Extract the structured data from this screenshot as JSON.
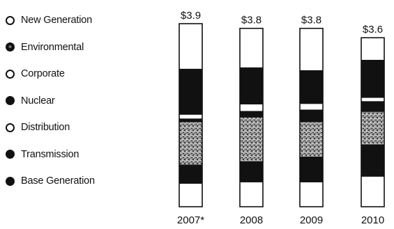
{
  "legend": {
    "items": [
      {
        "label": "New Generation",
        "marker": "hollow"
      },
      {
        "label": "Environmental",
        "marker": "filled"
      },
      {
        "label": "Corporate",
        "marker": "hollow"
      },
      {
        "label": "Nuclear",
        "marker": "filled"
      },
      {
        "label": "Distribution",
        "marker": "hollow"
      },
      {
        "label": "Transmission",
        "marker": "filled"
      },
      {
        "label": "Base Generation",
        "marker": "filled"
      }
    ]
  },
  "colors": {
    "dark": "#111111",
    "mottled": "#8a8a8a",
    "light": "#ffffff",
    "outline": "#111111"
  },
  "chart_data": {
    "type": "bar",
    "stacked": true,
    "categories": [
      "2007",
      "2008",
      "2009",
      "2010"
    ],
    "category_labels": [
      "2007*",
      "2008",
      "2009",
      "2010"
    ],
    "totals": [
      3.9,
      3.8,
      3.8,
      3.6
    ],
    "total_labels": [
      "$3.9",
      "$3.8",
      "$3.8",
      "$3.6"
    ],
    "series": [
      {
        "name": "Base Generation",
        "values": [
          0.49,
          0.52,
          0.52,
          0.64
        ],
        "fill": "light"
      },
      {
        "name": "Transmission",
        "values": [
          0.41,
          0.45,
          0.55,
          0.69
        ],
        "fill": "dark"
      },
      {
        "name": "Distribution",
        "values": [
          0.9,
          0.93,
          0.73,
          0.69
        ],
        "fill": "mottled"
      },
      {
        "name": "Nuclear",
        "values": [
          0.08,
          0.14,
          0.27,
          0.23
        ],
        "fill": "dark"
      },
      {
        "name": "Corporate",
        "values": [
          0.08,
          0.14,
          0.12,
          0.07
        ],
        "fill": "light"
      },
      {
        "name": "Environmental",
        "values": [
          0.98,
          0.79,
          0.72,
          0.81
        ],
        "fill": "dark"
      },
      {
        "name": "New Generation",
        "values": [
          0.96,
          0.83,
          0.89,
          0.47
        ],
        "fill": "light"
      }
    ],
    "units": "$ billions",
    "ylim": [
      0,
      3.9
    ],
    "grid": false,
    "legend_position": "left"
  }
}
